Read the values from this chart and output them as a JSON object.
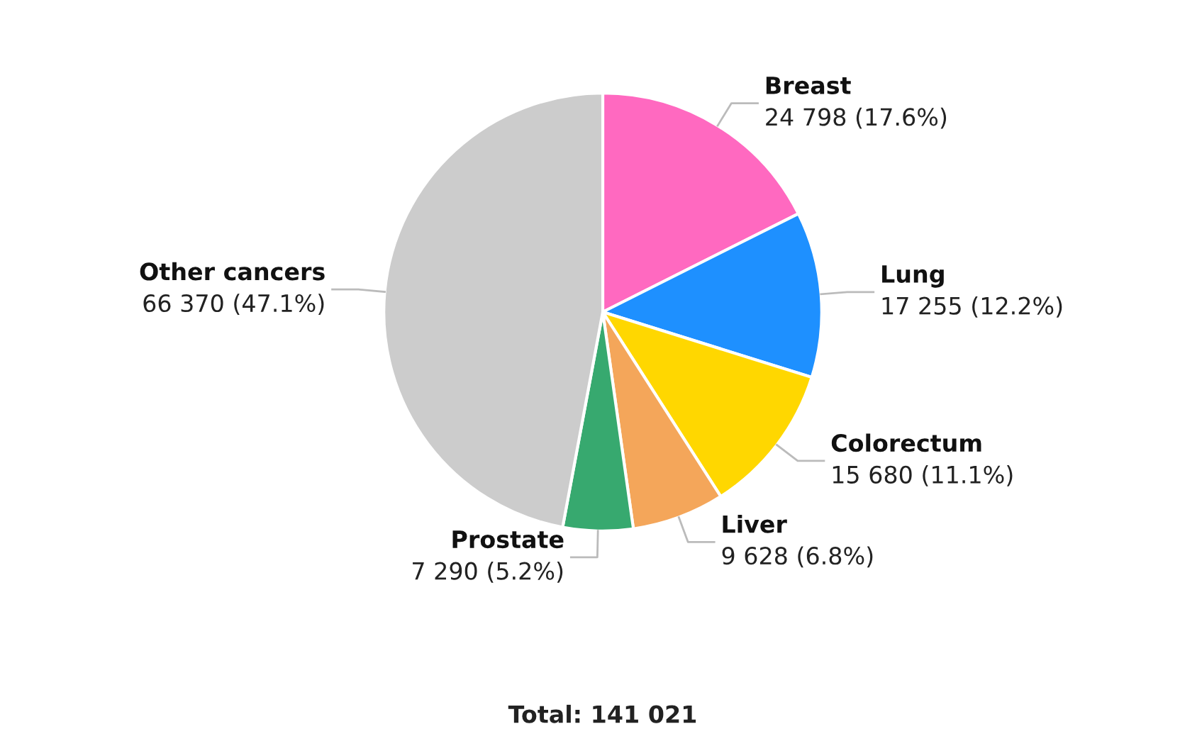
{
  "chart_data": {
    "type": "pie",
    "categories": [
      "Breast",
      "Lung",
      "Colorectum",
      "Liver",
      "Prostate",
      "Other cancers"
    ],
    "values": [
      24798,
      17255,
      15680,
      9628,
      7290,
      66370
    ],
    "colors": [
      "#ff69c0",
      "#1e90ff",
      "#ffd700",
      "#f4a65a",
      "#37a96f",
      "#cccccc"
    ],
    "value_labels": [
      "24 798 (17.6%)",
      "17 255 (12.2%)",
      "15 680 (11.1%)",
      "9 628 (6.8%)",
      "7 290 (5.2%)",
      "66 370 (47.1%)"
    ],
    "annotations": [
      "Total: 141 021"
    ],
    "legend": false
  }
}
